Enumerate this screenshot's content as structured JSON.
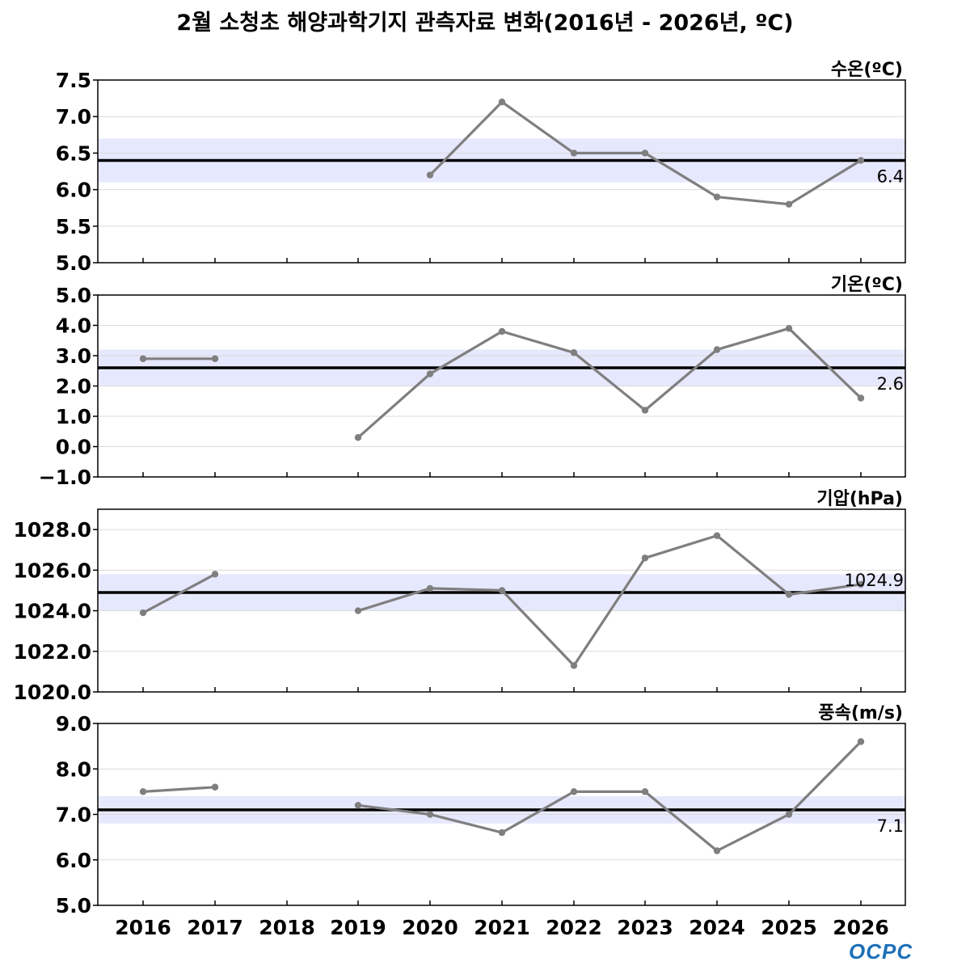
{
  "title": "2월 소청초 해양과학기지 관측자료 변화(2016년 - 2026년, ºC)",
  "logo_text": "OCPC",
  "colors": {
    "line": "#7f7f80",
    "mean_line": "#000000",
    "band": "#e6e9fd",
    "grid": "#d9d9d9"
  },
  "x_labels": [
    "2016",
    "2017",
    "2018",
    "2019",
    "2020",
    "2021",
    "2022",
    "2023",
    "2024",
    "2025",
    "2026"
  ],
  "chart_data": [
    {
      "type": "line",
      "label": "수온(ºC)",
      "x": [
        2016,
        2017,
        2018,
        2019,
        2020,
        2021,
        2022,
        2023,
        2024,
        2025,
        2026
      ],
      "values": [
        null,
        null,
        null,
        null,
        6.2,
        7.2,
        6.5,
        6.5,
        5.9,
        5.8,
        6.4
      ],
      "mean": 6.4,
      "mean_label": "6.4",
      "band": [
        6.1,
        6.7
      ],
      "ylim": [
        5.0,
        7.5
      ],
      "yticks": [
        5.0,
        5.5,
        6.0,
        6.5,
        7.0,
        7.5
      ],
      "ytick_labels": [
        "5.0",
        "5.5",
        "6.0",
        "6.5",
        "7.0",
        "7.5"
      ],
      "grid": true
    },
    {
      "type": "line",
      "label": "기온(ºC)",
      "x": [
        2016,
        2017,
        2018,
        2019,
        2020,
        2021,
        2022,
        2023,
        2024,
        2025,
        2026
      ],
      "values": [
        2.9,
        2.9,
        null,
        0.3,
        2.4,
        3.8,
        3.1,
        1.2,
        3.2,
        3.9,
        1.6
      ],
      "mean": 2.6,
      "mean_label": "2.6",
      "band": [
        2.0,
        3.2
      ],
      "ylim": [
        -1.0,
        5.0
      ],
      "yticks": [
        -1.0,
        0.0,
        1.0,
        2.0,
        3.0,
        4.0,
        5.0
      ],
      "ytick_labels": [
        "−1.0",
        "0.0",
        "1.0",
        "2.0",
        "3.0",
        "4.0",
        "5.0"
      ],
      "grid": true
    },
    {
      "type": "line",
      "label": "기압(hPa)",
      "x": [
        2016,
        2017,
        2018,
        2019,
        2020,
        2021,
        2022,
        2023,
        2024,
        2025,
        2026
      ],
      "values": [
        1023.9,
        1025.8,
        null,
        1024.0,
        1025.1,
        1025.0,
        1021.3,
        1026.6,
        1027.7,
        1024.8,
        1025.3
      ],
      "mean": 1024.9,
      "mean_label": "1024.9",
      "band": [
        1024.0,
        1025.8
      ],
      "ylim": [
        1020.0,
        1029.0
      ],
      "yticks": [
        1020.0,
        1022.0,
        1024.0,
        1026.0,
        1028.0
      ],
      "ytick_labels": [
        "1020.0",
        "1022.0",
        "1024.0",
        "1026.0",
        "1028.0"
      ],
      "grid": true
    },
    {
      "type": "line",
      "label": "풍속(m/s)",
      "x": [
        2016,
        2017,
        2018,
        2019,
        2020,
        2021,
        2022,
        2023,
        2024,
        2025,
        2026
      ],
      "values": [
        7.5,
        7.6,
        null,
        7.2,
        7.0,
        6.6,
        7.5,
        7.5,
        6.2,
        7.0,
        8.6
      ],
      "mean": 7.1,
      "mean_label": "7.1",
      "band": [
        6.8,
        7.4
      ],
      "ylim": [
        5.0,
        9.0
      ],
      "yticks": [
        5.0,
        6.0,
        7.0,
        8.0,
        9.0
      ],
      "ytick_labels": [
        "5.0",
        "6.0",
        "7.0",
        "8.0",
        "9.0"
      ],
      "grid": true
    }
  ]
}
